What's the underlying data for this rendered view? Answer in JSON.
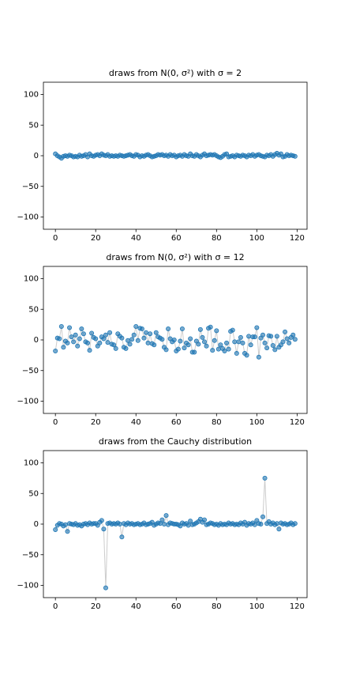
{
  "chart_data": [
    {
      "type": "line",
      "title": "draws from N(0, σ²) with σ = 2",
      "x": [
        0,
        1,
        2,
        3,
        4,
        5,
        6,
        7,
        8,
        9,
        10,
        11,
        12,
        13,
        14,
        15,
        16,
        17,
        18,
        19,
        20,
        21,
        22,
        23,
        24,
        25,
        26,
        27,
        28,
        29,
        30,
        31,
        32,
        33,
        34,
        35,
        36,
        37,
        38,
        39,
        40,
        41,
        42,
        43,
        44,
        45,
        46,
        47,
        48,
        49,
        50,
        51,
        52,
        53,
        54,
        55,
        56,
        57,
        58,
        59,
        60,
        61,
        62,
        63,
        64,
        65,
        66,
        67,
        68,
        69,
        70,
        71,
        72,
        73,
        74,
        75,
        76,
        77,
        78,
        79,
        80,
        81,
        82,
        83,
        84,
        85,
        86,
        87,
        88,
        89,
        90,
        91,
        92,
        93,
        94,
        95,
        96,
        97,
        98,
        99,
        100,
        101,
        102,
        103,
        104,
        105,
        106,
        107,
        108,
        109,
        110,
        111,
        112,
        113,
        114,
        115,
        116,
        117,
        118,
        119
      ],
      "series": [
        {
          "color": "#1f77b4",
          "line_color": "#cccccc",
          "values": [
            3,
            0,
            -2,
            -4,
            -1,
            0,
            -1,
            1,
            0,
            -2,
            -1,
            -2,
            1,
            -1,
            0,
            2,
            -2,
            3,
            0,
            -1,
            1,
            2,
            0,
            3,
            1,
            0,
            2,
            -1,
            0,
            -1,
            0,
            -1,
            1,
            0,
            -1,
            0,
            1,
            2,
            0,
            -1,
            2,
            1,
            -2,
            0,
            -1,
            1,
            2,
            0,
            -2,
            -1,
            0,
            2,
            1,
            2,
            0,
            1,
            -1,
            2,
            0,
            1,
            -2,
            0,
            1,
            -1,
            2,
            0,
            -1,
            3,
            0,
            -1,
            2,
            0,
            -2,
            1,
            3,
            0,
            1,
            2,
            1,
            2,
            0,
            -2,
            -3,
            -1,
            2,
            3,
            -2,
            -1,
            0,
            -2,
            1,
            0,
            -1,
            1,
            0,
            -2,
            1,
            0,
            2,
            -1,
            1,
            2,
            0,
            -1,
            -2,
            1,
            0,
            2,
            -1,
            2,
            4,
            1,
            3,
            -2,
            -1,
            2,
            0,
            1,
            0,
            -1
          ]
        }
      ],
      "xlim": [
        -5.95,
        124.95
      ],
      "xticks": [
        0,
        20,
        40,
        60,
        80,
        100,
        120
      ],
      "ylim": [
        -120,
        120
      ],
      "yticks": [
        {
          "value": -100,
          "label": "−100"
        },
        {
          "value": -50,
          "label": "−50"
        },
        0,
        50,
        100
      ]
    },
    {
      "type": "line",
      "title": "draws from N(0, σ²) with σ = 12",
      "x": [
        0,
        1,
        2,
        3,
        4,
        5,
        6,
        7,
        8,
        9,
        10,
        11,
        12,
        13,
        14,
        15,
        16,
        17,
        18,
        19,
        20,
        21,
        22,
        23,
        24,
        25,
        26,
        27,
        28,
        29,
        30,
        31,
        32,
        33,
        34,
        35,
        36,
        37,
        38,
        39,
        40,
        41,
        42,
        43,
        44,
        45,
        46,
        47,
        48,
        49,
        50,
        51,
        52,
        53,
        54,
        55,
        56,
        57,
        58,
        59,
        60,
        61,
        62,
        63,
        64,
        65,
        66,
        67,
        68,
        69,
        70,
        71,
        72,
        73,
        74,
        75,
        76,
        77,
        78,
        79,
        80,
        81,
        82,
        83,
        84,
        85,
        86,
        87,
        88,
        89,
        90,
        91,
        92,
        93,
        94,
        95,
        96,
        97,
        98,
        99,
        100,
        101,
        102,
        103,
        104,
        105,
        106,
        107,
        108,
        109,
        110,
        111,
        112,
        113,
        114,
        115,
        116,
        117,
        118,
        119
      ],
      "series": [
        {
          "color": "#1f77b4",
          "line_color": "#cccccc",
          "values": [
            -18,
            3,
            2,
            22,
            -12,
            -2,
            -5,
            20,
            5,
            -3,
            8,
            -10,
            2,
            18,
            10,
            -3,
            -5,
            -17,
            11,
            4,
            2,
            -10,
            -5,
            5,
            2,
            8,
            -4,
            12,
            -7,
            -8,
            -14,
            10,
            6,
            3,
            -12,
            -14,
            -1,
            -7,
            1,
            8,
            22,
            -1,
            19,
            18,
            3,
            12,
            -5,
            10,
            -6,
            -8,
            12,
            5,
            3,
            1,
            -12,
            -16,
            18,
            2,
            -3,
            0,
            -18,
            -15,
            -2,
            18,
            -13,
            -5,
            -8,
            2,
            -20,
            -20,
            -2,
            -7,
            17,
            4,
            -3,
            -10,
            19,
            21,
            -17,
            -1,
            15,
            -15,
            -8,
            -14,
            -18,
            -5,
            -15,
            14,
            16,
            -3,
            -22,
            -3,
            4,
            -5,
            -22,
            -25,
            6,
            -8,
            5,
            5,
            20,
            -28,
            3,
            8,
            -5,
            -13,
            7,
            6,
            -9,
            -16,
            6,
            -12,
            -8,
            -3,
            13,
            2,
            -5,
            4,
            8,
            1
          ]
        }
      ],
      "xlim": [
        -5.95,
        124.95
      ],
      "xticks": [
        0,
        20,
        40,
        60,
        80,
        100,
        120
      ],
      "ylim": [
        -120,
        120
      ],
      "yticks": [
        {
          "value": -100,
          "label": "−100"
        },
        {
          "value": -50,
          "label": "−50"
        },
        0,
        50,
        100
      ]
    },
    {
      "type": "line",
      "title": "draws from the Cauchy distribution",
      "x": [
        0,
        1,
        2,
        3,
        4,
        5,
        6,
        7,
        8,
        9,
        10,
        11,
        12,
        13,
        14,
        15,
        16,
        17,
        18,
        19,
        20,
        21,
        22,
        23,
        24,
        25,
        26,
        27,
        28,
        29,
        30,
        31,
        32,
        33,
        34,
        35,
        36,
        37,
        38,
        39,
        40,
        41,
        42,
        43,
        44,
        45,
        46,
        47,
        48,
        49,
        50,
        51,
        52,
        53,
        54,
        55,
        56,
        57,
        58,
        59,
        60,
        61,
        62,
        63,
        64,
        65,
        66,
        67,
        68,
        69,
        70,
        71,
        72,
        73,
        74,
        75,
        76,
        77,
        78,
        79,
        80,
        81,
        82,
        83,
        84,
        85,
        86,
        87,
        88,
        89,
        90,
        91,
        92,
        93,
        94,
        95,
        96,
        97,
        98,
        99,
        100,
        101,
        102,
        103,
        104,
        105,
        106,
        107,
        108,
        109,
        110,
        111,
        112,
        113,
        114,
        115,
        116,
        117,
        118,
        119
      ],
      "series": [
        {
          "color": "#1f77b4",
          "line_color": "#cccccc",
          "values": [
            -9,
            -2,
            1,
            0,
            -3,
            -1,
            -12,
            1,
            0,
            -1,
            1,
            -2,
            -1,
            -3,
            0,
            1,
            -1,
            2,
            0,
            1,
            1,
            -2,
            3,
            6,
            -8,
            -104,
            1,
            2,
            0,
            1,
            0,
            2,
            0,
            -21,
            1,
            -1,
            2,
            0,
            1,
            -1,
            0,
            1,
            -1,
            0,
            2,
            -1,
            0,
            1,
            3,
            -2,
            0,
            2,
            1,
            7,
            0,
            14,
            -1,
            2,
            1,
            0,
            0,
            -1,
            -3,
            2,
            0,
            1,
            -2,
            5,
            -1,
            0,
            2,
            4,
            8,
            3,
            7,
            -1,
            0,
            2,
            1,
            -1,
            0,
            -2,
            1,
            -1,
            0,
            -1,
            2,
            0,
            1,
            -1,
            0,
            -1,
            2,
            0,
            3,
            -2,
            1,
            0,
            2,
            -1,
            6,
            1,
            0,
            12,
            75,
            1,
            4,
            0,
            2,
            -1,
            1,
            -8,
            2,
            0,
            1,
            -1,
            0,
            2,
            -1,
            1
          ]
        }
      ],
      "xlim": [
        -5.95,
        124.95
      ],
      "xticks": [
        0,
        20,
        40,
        60,
        80,
        100,
        120
      ],
      "ylim": [
        -120,
        120
      ],
      "yticks": [
        {
          "value": -100,
          "label": "−100"
        },
        {
          "value": -50,
          "label": "−50"
        },
        0,
        50,
        100
      ]
    }
  ]
}
